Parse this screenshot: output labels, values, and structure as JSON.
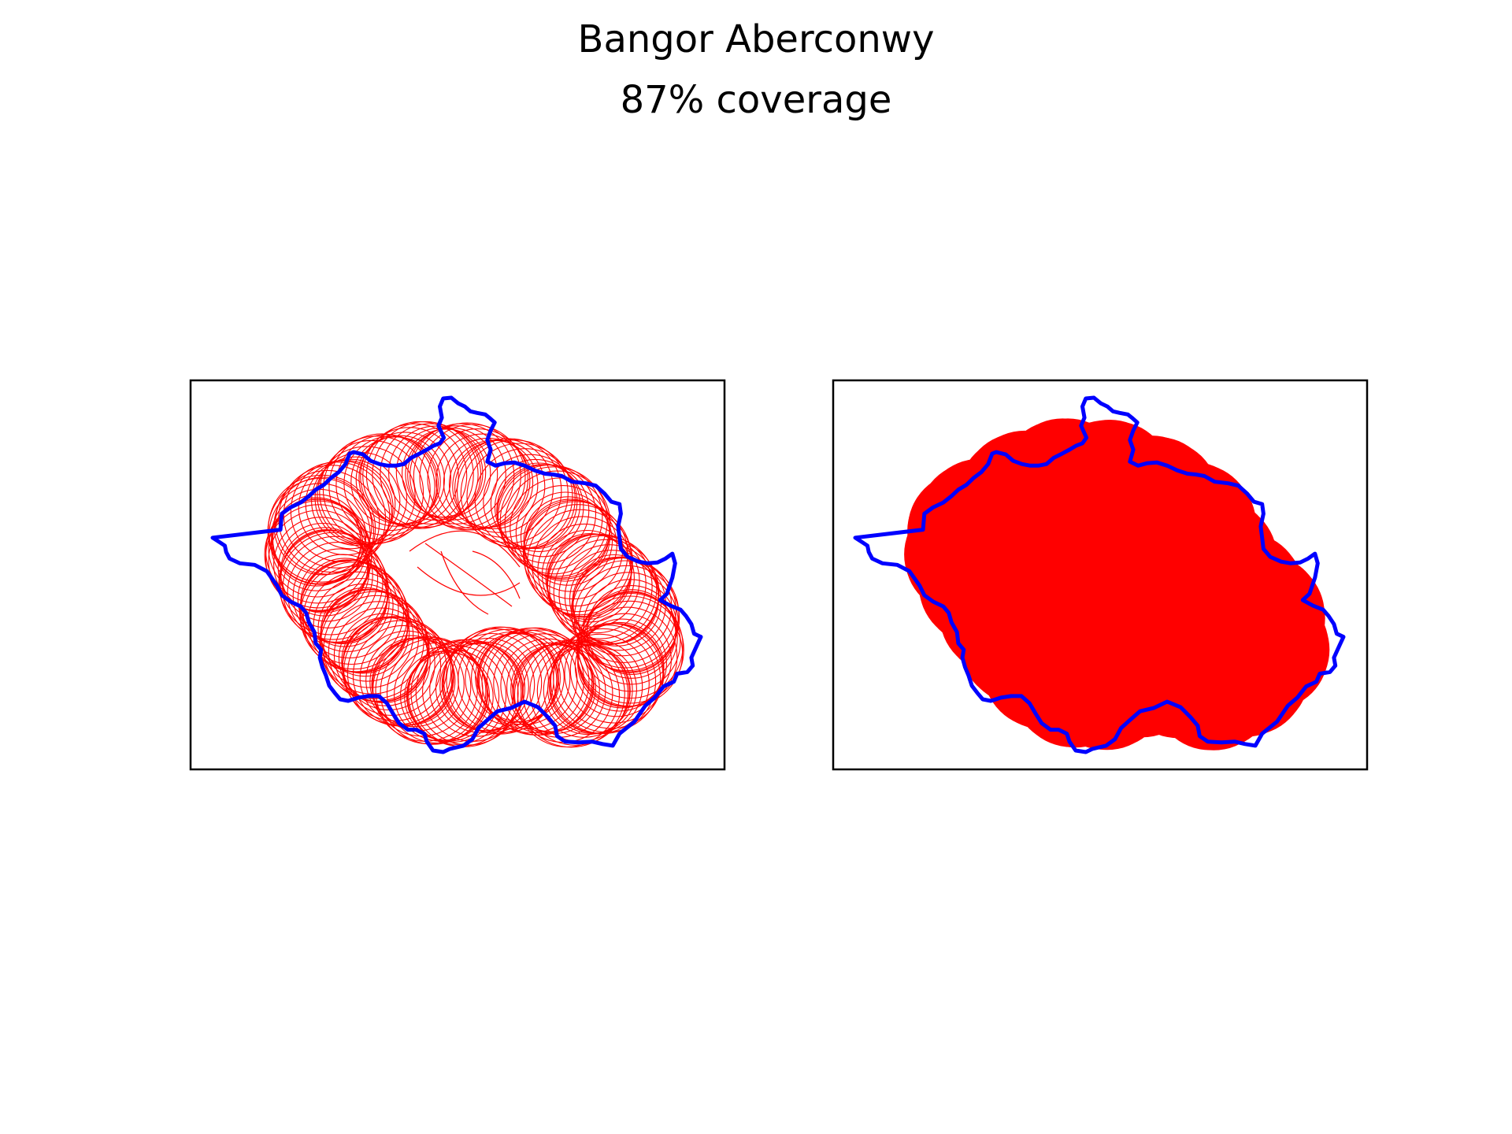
{
  "figure": {
    "title": "Bangor Aberconwy",
    "subtitle": "87% coverage"
  },
  "colors": {
    "boundary": "#0000ff",
    "coverage": "#ff0000",
    "frame": "#000000",
    "background": "#ffffff"
  },
  "panels": [
    {
      "style": "outlined circles"
    },
    {
      "style": "filled union"
    }
  ],
  "coverage_percent": 87
}
